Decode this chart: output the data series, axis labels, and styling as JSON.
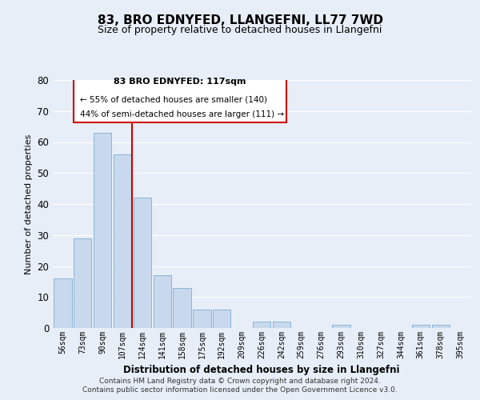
{
  "title": "83, BRO EDNYFED, LLANGEFNI, LL77 7WD",
  "subtitle": "Size of property relative to detached houses in Llangefni",
  "xlabel": "Distribution of detached houses by size in Llangefni",
  "ylabel": "Number of detached properties",
  "bar_labels": [
    "56sqm",
    "73sqm",
    "90sqm",
    "107sqm",
    "124sqm",
    "141sqm",
    "158sqm",
    "175sqm",
    "192sqm",
    "209sqm",
    "226sqm",
    "242sqm",
    "259sqm",
    "276sqm",
    "293sqm",
    "310sqm",
    "327sqm",
    "344sqm",
    "361sqm",
    "378sqm",
    "395sqm"
  ],
  "bar_values": [
    16,
    29,
    63,
    56,
    42,
    17,
    13,
    6,
    6,
    0,
    2,
    2,
    0,
    0,
    1,
    0,
    0,
    0,
    1,
    1,
    0
  ],
  "bar_color": "#c9d9ed",
  "bar_edgecolor": "#7aadd4",
  "ylim": [
    0,
    80
  ],
  "yticks": [
    0,
    10,
    20,
    30,
    40,
    50,
    60,
    70,
    80
  ],
  "vline_x": 3.5,
  "vline_color": "#cc0000",
  "annotation_title": "83 BRO EDNYFED: 117sqm",
  "annotation_line1": "← 55% of detached houses are smaller (140)",
  "annotation_line2": "44% of semi-detached houses are larger (111) →",
  "annotation_box_color": "#cc0000",
  "footer_line1": "Contains HM Land Registry data © Crown copyright and database right 2024.",
  "footer_line2": "Contains public sector information licensed under the Open Government Licence v3.0.",
  "background_color": "#e8eef8",
  "plot_background": "#e8eef8",
  "grid_color": "#ffffff",
  "title_fontsize": 11,
  "subtitle_fontsize": 9
}
